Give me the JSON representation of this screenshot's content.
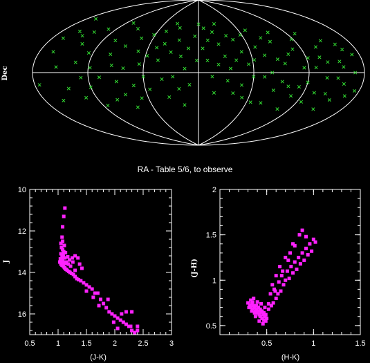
{
  "figure": {
    "caption": "RA - Table 5/6, to observe",
    "colors": {
      "background": "#000000",
      "axes": "#ffffff",
      "sky_points": "#33dd33",
      "cmd_points": "#ff22ff"
    }
  },
  "chart_data": [
    {
      "type": "scatter",
      "projection": "aitoff-sky",
      "ylabel": "Dec",
      "xlabel": "RA - Table 5/6, to observe",
      "marker": "x",
      "grid": true,
      "points": [
        [
          -170,
          50
        ],
        [
          -160,
          38
        ],
        [
          -165,
          18
        ],
        [
          -150,
          35
        ],
        [
          -140,
          28
        ],
        [
          -130,
          45
        ],
        [
          -135,
          10
        ],
        [
          -128,
          -5
        ],
        [
          -120,
          -15
        ],
        [
          -110,
          55
        ],
        [
          -105,
          35
        ],
        [
          -100,
          20
        ],
        [
          -95,
          8
        ],
        [
          -90,
          -10
        ],
        [
          -85,
          -25
        ],
        [
          -80,
          -40
        ],
        [
          -75,
          40
        ],
        [
          -70,
          25
        ],
        [
          -65,
          10
        ],
        [
          -60,
          -5
        ],
        [
          -55,
          -20
        ],
        [
          -50,
          30
        ],
        [
          -45,
          15
        ],
        [
          -40,
          -8
        ],
        [
          -35,
          -30
        ],
        [
          -30,
          55
        ],
        [
          -25,
          40
        ],
        [
          -20,
          20
        ],
        [
          -15,
          5
        ],
        [
          -10,
          -15
        ],
        [
          -5,
          45
        ],
        [
          0,
          60
        ],
        [
          5,
          30
        ],
        [
          10,
          15
        ],
        [
          15,
          -5
        ],
        [
          20,
          50
        ],
        [
          25,
          35
        ],
        [
          30,
          20
        ],
        [
          35,
          5
        ],
        [
          40,
          -25
        ],
        [
          45,
          40
        ],
        [
          50,
          25
        ],
        [
          55,
          10
        ],
        [
          60,
          -5
        ],
        [
          65,
          -35
        ],
        [
          70,
          50
        ],
        [
          75,
          20
        ],
        [
          80,
          0
        ],
        [
          85,
          -20
        ],
        [
          90,
          35
        ],
        [
          95,
          10
        ],
        [
          100,
          -15
        ],
        [
          105,
          -40
        ],
        [
          110,
          25
        ],
        [
          115,
          5
        ],
        [
          120,
          -10
        ],
        [
          125,
          -30
        ],
        [
          130,
          40
        ],
        [
          135,
          15
        ],
        [
          140,
          -5
        ],
        [
          145,
          -20
        ],
        [
          150,
          30
        ],
        [
          155,
          10
        ],
        [
          160,
          -10
        ],
        [
          165,
          20
        ],
        [
          170,
          0
        ],
        [
          175,
          -15
        ],
        [
          -175,
          -10
        ],
        [
          -160,
          -25
        ],
        [
          -145,
          -15
        ],
        [
          -125,
          20
        ],
        [
          -115,
          -35
        ],
        [
          -98,
          -30
        ],
        [
          -88,
          30
        ],
        [
          -72,
          -15
        ],
        [
          -62,
          45
        ],
        [
          -48,
          50
        ],
        [
          -38,
          60
        ],
        [
          -28,
          -5
        ],
        [
          -18,
          -40
        ],
        [
          8,
          55
        ],
        [
          18,
          -25
        ],
        [
          28,
          60
        ],
        [
          38,
          45
        ],
        [
          48,
          -15
        ],
        [
          58,
          45
        ],
        [
          68,
          30
        ],
        [
          78,
          -35
        ],
        [
          88,
          15
        ],
        [
          98,
          45
        ],
        [
          108,
          -25
        ],
        [
          118,
          35
        ],
        [
          128,
          5
        ],
        [
          138,
          25
        ],
        [
          148,
          -35
        ],
        [
          158,
          5
        ],
        [
          168,
          -20
        ],
        [
          172,
          15
        ],
        [
          -168,
          30
        ],
        [
          -155,
          5
        ],
        [
          -142,
          40
        ],
        [
          -132,
          -25
        ],
        [
          -118,
          5
        ],
        [
          -108,
          -5
        ],
        [
          -92,
          50
        ],
        [
          -82,
          5
        ],
        [
          -68,
          -30
        ],
        [
          -58,
          20
        ],
        [
          -42,
          35
        ],
        [
          -32,
          25
        ],
        [
          -22,
          -20
        ],
        [
          -12,
          30
        ],
        [
          -2,
          15
        ],
        [
          12,
          40
        ],
        [
          22,
          10
        ],
        [
          32,
          -10
        ],
        [
          42,
          15
        ],
        [
          52,
          -30
        ],
        [
          62,
          15
        ],
        [
          72,
          -5
        ],
        [
          82,
          40
        ],
        [
          92,
          -10
        ],
        [
          102,
          20
        ],
        [
          112,
          -15
        ],
        [
          122,
          15
        ],
        [
          132,
          -20
        ],
        [
          142,
          10
        ],
        [
          152,
          -5
        ],
        [
          162,
          25
        ],
        [
          155,
          -25
        ]
      ]
    },
    {
      "type": "scatter",
      "xlabel": "(J-K)",
      "ylabel": "J",
      "xlim": [
        0.5,
        3
      ],
      "ylim": [
        10,
        17
      ],
      "y_inverted": true,
      "xticks": [
        "0.5",
        "1",
        "1.5",
        "2",
        "2.5",
        "3"
      ],
      "yticks": [
        "10",
        "12",
        "14",
        "16"
      ],
      "marker": "square",
      "points": [
        [
          1.12,
          10.9
        ],
        [
          1.1,
          11.3
        ],
        [
          1.08,
          11.8
        ],
        [
          1.07,
          12.3
        ],
        [
          1.05,
          12.6
        ],
        [
          1.06,
          12.8
        ],
        [
          1.08,
          12.9
        ],
        [
          1.1,
          13.0
        ],
        [
          1.05,
          13.1
        ],
        [
          1.07,
          13.2
        ],
        [
          1.09,
          13.25
        ],
        [
          1.12,
          13.3
        ],
        [
          1.04,
          13.35
        ],
        [
          1.06,
          13.4
        ],
        [
          1.08,
          13.45
        ],
        [
          1.1,
          13.5
        ],
        [
          1.13,
          13.55
        ],
        [
          1.05,
          13.6
        ],
        [
          1.07,
          13.65
        ],
        [
          1.09,
          13.7
        ],
        [
          1.11,
          13.75
        ],
        [
          1.15,
          13.5
        ],
        [
          1.18,
          13.6
        ],
        [
          1.2,
          13.4
        ],
        [
          1.22,
          13.7
        ],
        [
          1.25,
          13.3
        ],
        [
          1.3,
          13.2
        ],
        [
          1.35,
          13.3
        ],
        [
          1.12,
          13.8
        ],
        [
          1.14,
          13.85
        ],
        [
          1.16,
          13.9
        ],
        [
          1.19,
          13.95
        ],
        [
          1.21,
          14.0
        ],
        [
          1.24,
          14.05
        ],
        [
          1.27,
          14.1
        ],
        [
          1.3,
          14.2
        ],
        [
          1.33,
          14.3
        ],
        [
          1.36,
          14.35
        ],
        [
          1.4,
          14.4
        ],
        [
          1.45,
          14.5
        ],
        [
          1.5,
          14.6
        ],
        [
          1.55,
          14.7
        ],
        [
          1.6,
          14.8
        ],
        [
          1.5,
          14.9
        ],
        [
          1.65,
          15.0
        ],
        [
          1.7,
          15.0
        ],
        [
          1.62,
          15.2
        ],
        [
          1.75,
          15.3
        ],
        [
          1.8,
          15.5
        ],
        [
          1.72,
          15.6
        ],
        [
          1.85,
          15.7
        ],
        [
          1.9,
          15.9
        ],
        [
          1.95,
          16.0
        ],
        [
          2.0,
          16.1
        ],
        [
          2.05,
          16.2
        ],
        [
          2.1,
          16.3
        ],
        [
          2.15,
          16.4
        ],
        [
          2.2,
          16.5
        ],
        [
          2.25,
          16.6
        ],
        [
          2.3,
          16.8
        ],
        [
          2.35,
          16.9
        ],
        [
          2.4,
          16.8
        ],
        [
          2.28,
          16.6
        ],
        [
          2.05,
          16.7
        ],
        [
          1.98,
          16.4
        ],
        [
          2.12,
          16.0
        ],
        [
          2.2,
          15.9
        ],
        [
          2.3,
          15.9
        ],
        [
          2.4,
          16.6
        ],
        [
          1.88,
          15.3
        ],
        [
          1.42,
          13.8
        ],
        [
          1.38,
          13.6
        ],
        [
          1.3,
          13.9
        ],
        [
          1.26,
          13.5
        ],
        [
          1.08,
          12.5
        ],
        [
          1.13,
          13.05
        ],
        [
          1.17,
          13.25
        ],
        [
          1.03,
          13.5
        ],
        [
          1.09,
          13.15
        ],
        [
          1.11,
          12.7
        ]
      ]
    },
    {
      "type": "scatter",
      "xlabel": "(H-K)",
      "ylabel": "(J-H)",
      "xlim": [
        0,
        1.5
      ],
      "ylim": [
        0.4,
        2
      ],
      "xticks": [
        "0.5",
        "1",
        "1.5"
      ],
      "yticks": [
        "0.5",
        "1",
        "1.5",
        "2"
      ],
      "marker": "square",
      "points": [
        [
          0.3,
          0.75
        ],
        [
          0.32,
          0.72
        ],
        [
          0.33,
          0.7
        ],
        [
          0.35,
          0.68
        ],
        [
          0.36,
          0.72
        ],
        [
          0.38,
          0.66
        ],
        [
          0.34,
          0.74
        ],
        [
          0.37,
          0.7
        ],
        [
          0.39,
          0.68
        ],
        [
          0.4,
          0.64
        ],
        [
          0.41,
          0.66
        ],
        [
          0.42,
          0.62
        ],
        [
          0.43,
          0.6
        ],
        [
          0.44,
          0.65
        ],
        [
          0.45,
          0.58
        ],
        [
          0.46,
          0.62
        ],
        [
          0.47,
          0.56
        ],
        [
          0.48,
          0.6
        ],
        [
          0.49,
          0.55
        ],
        [
          0.5,
          0.58
        ],
        [
          0.31,
          0.7
        ],
        [
          0.33,
          0.78
        ],
        [
          0.35,
          0.76
        ],
        [
          0.37,
          0.64
        ],
        [
          0.39,
          0.72
        ],
        [
          0.41,
          0.7
        ],
        [
          0.43,
          0.68
        ],
        [
          0.45,
          0.66
        ],
        [
          0.47,
          0.64
        ],
        [
          0.49,
          0.62
        ],
        [
          0.36,
          0.8
        ],
        [
          0.4,
          0.76
        ],
        [
          0.44,
          0.74
        ],
        [
          0.48,
          0.7
        ],
        [
          0.52,
          0.68
        ],
        [
          0.55,
          0.72
        ],
        [
          0.57,
          0.75
        ],
        [
          0.6,
          0.8
        ],
        [
          0.62,
          0.85
        ],
        [
          0.58,
          0.9
        ],
        [
          0.65,
          0.88
        ],
        [
          0.68,
          0.95
        ],
        [
          0.7,
          1.0
        ],
        [
          0.66,
          1.05
        ],
        [
          0.72,
          1.1
        ],
        [
          0.74,
          1.02
        ],
        [
          0.76,
          1.15
        ],
        [
          0.78,
          1.08
        ],
        [
          0.8,
          1.2
        ],
        [
          0.82,
          1.12
        ],
        [
          0.84,
          1.25
        ],
        [
          0.86,
          1.18
        ],
        [
          0.88,
          1.3
        ],
        [
          0.9,
          1.22
        ],
        [
          0.92,
          1.35
        ],
        [
          0.94,
          1.28
        ],
        [
          0.96,
          1.4
        ],
        [
          0.98,
          1.32
        ],
        [
          1.0,
          1.45
        ],
        [
          0.85,
          1.5
        ],
        [
          0.8,
          1.38
        ],
        [
          0.75,
          1.3
        ],
        [
          0.7,
          1.25
        ],
        [
          0.64,
          1.15
        ],
        [
          0.6,
          1.05
        ],
        [
          0.56,
          0.95
        ],
        [
          0.54,
          0.85
        ],
        [
          0.46,
          0.52
        ],
        [
          0.42,
          0.55
        ],
        [
          0.52,
          0.74
        ],
        [
          0.88,
          1.55
        ],
        [
          0.92,
          1.48
        ],
        [
          1.02,
          1.42
        ],
        [
          0.78,
          1.4
        ],
        [
          0.73,
          1.22
        ],
        [
          0.67,
          1.1
        ],
        [
          0.63,
          0.98
        ],
        [
          0.59,
          0.88
        ],
        [
          0.34,
          0.66
        ],
        [
          0.38,
          0.6
        ]
      ]
    }
  ]
}
